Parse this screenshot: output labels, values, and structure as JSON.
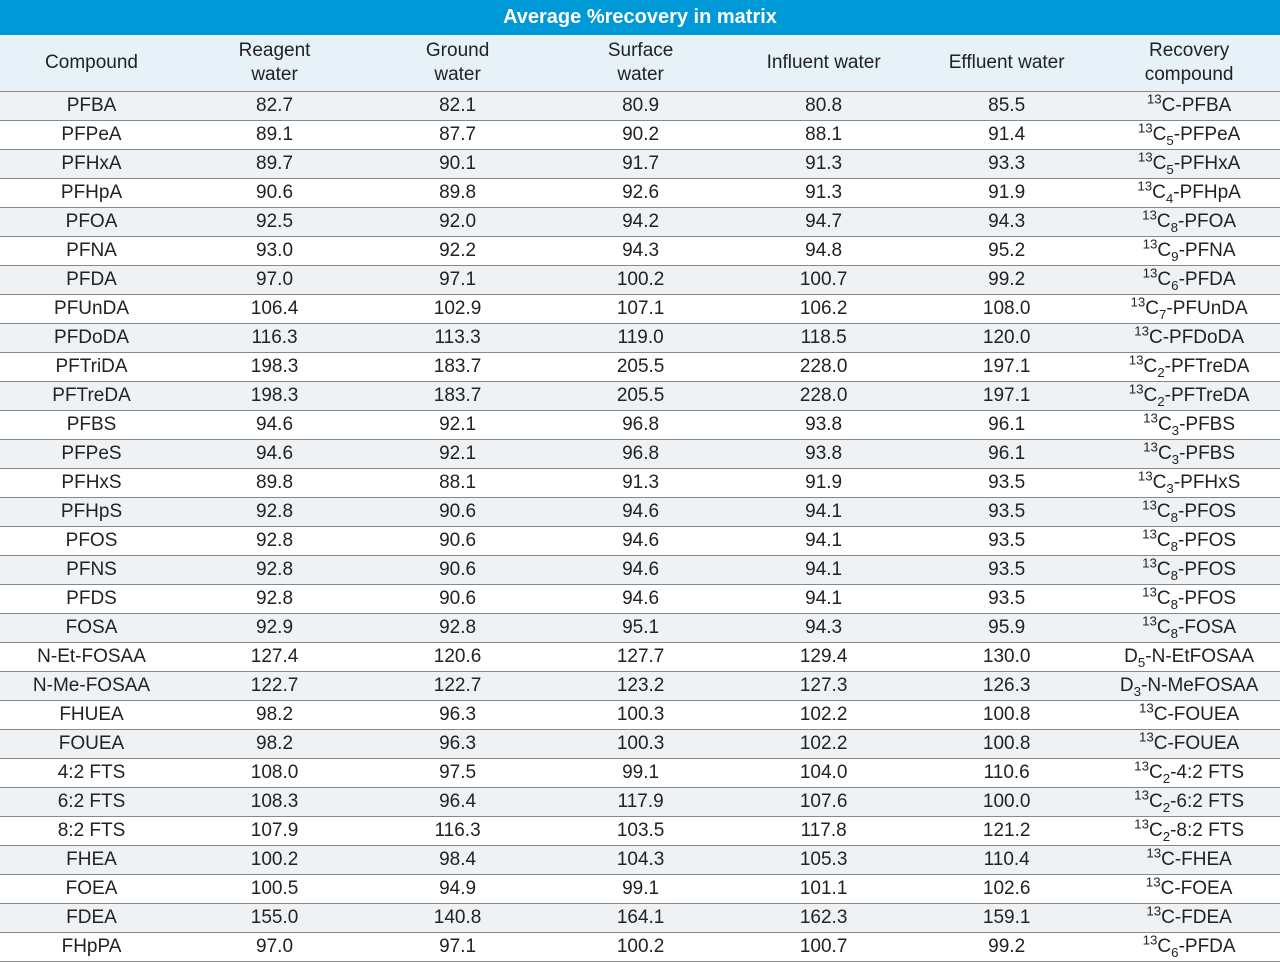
{
  "table": {
    "title": "Average %recovery in matrix",
    "title_bg": "#0099d8",
    "title_color": "#ffffff",
    "title_fontsize": 20,
    "header_bg": "#e6f2f8",
    "header_color": "#222222",
    "header_fontsize": 19,
    "body_fontsize": 19,
    "row_stripe_odd": "#eef2f5",
    "row_stripe_even": "#ffffff",
    "border_color": "#888888",
    "columns": [
      {
        "key": "compound",
        "label_html": "Compound"
      },
      {
        "key": "reagent",
        "label_html": "Reagent<br>water"
      },
      {
        "key": "ground",
        "label_html": "Ground<br>water"
      },
      {
        "key": "surface",
        "label_html": "Surface<br>water"
      },
      {
        "key": "influent",
        "label_html": "Influent water"
      },
      {
        "key": "effluent",
        "label_html": "Effluent water"
      },
      {
        "key": "recovery",
        "label_html": "Recovery<br>compound"
      }
    ],
    "col_widths_pct": [
      14.3,
      14.3,
      14.3,
      14.3,
      14.3,
      14.3,
      14.2
    ],
    "rows": [
      {
        "compound": "PFBA",
        "reagent": "82.7",
        "ground": "82.1",
        "surface": "80.9",
        "influent": "80.8",
        "effluent": "85.5",
        "recovery_html": "<sup>13</sup>C-PFBA"
      },
      {
        "compound": "PFPeA",
        "reagent": "89.1",
        "ground": "87.7",
        "surface": "90.2",
        "influent": "88.1",
        "effluent": "91.4",
        "recovery_html": "<sup>13</sup>C<sub>5</sub>-PFPeA"
      },
      {
        "compound": "PFHxA",
        "reagent": "89.7",
        "ground": "90.1",
        "surface": "91.7",
        "influent": "91.3",
        "effluent": "93.3",
        "recovery_html": "<sup>13</sup>C<sub>5</sub>-PFHxA"
      },
      {
        "compound": "PFHpA",
        "reagent": "90.6",
        "ground": "89.8",
        "surface": "92.6",
        "influent": "91.3",
        "effluent": "91.9",
        "recovery_html": "<sup>13</sup>C<sub>4</sub>-PFHpA"
      },
      {
        "compound": "PFOA",
        "reagent": "92.5",
        "ground": "92.0",
        "surface": "94.2",
        "influent": "94.7",
        "effluent": "94.3",
        "recovery_html": "<sup>13</sup>C<sub>8</sub>-PFOA"
      },
      {
        "compound": "PFNA",
        "reagent": "93.0",
        "ground": "92.2",
        "surface": "94.3",
        "influent": "94.8",
        "effluent": "95.2",
        "recovery_html": "<sup>13</sup>C<sub>9</sub>-PFNA"
      },
      {
        "compound": "PFDA",
        "reagent": "97.0",
        "ground": "97.1",
        "surface": "100.2",
        "influent": "100.7",
        "effluent": "99.2",
        "recovery_html": "<sup>13</sup>C<sub>6</sub>-PFDA"
      },
      {
        "compound": "PFUnDA",
        "reagent": "106.4",
        "ground": "102.9",
        "surface": "107.1",
        "influent": "106.2",
        "effluent": "108.0",
        "recovery_html": "<sup>13</sup>C<sub>7</sub>-PFUnDA"
      },
      {
        "compound": "PFDoDA",
        "reagent": "116.3",
        "ground": "113.3",
        "surface": "119.0",
        "influent": "118.5",
        "effluent": "120.0",
        "recovery_html": "<sup>13</sup>C-PFDoDA"
      },
      {
        "compound": "PFTriDA",
        "reagent": "198.3",
        "ground": "183.7",
        "surface": "205.5",
        "influent": "228.0",
        "effluent": "197.1",
        "recovery_html": "<sup>13</sup>C<sub>2</sub>-PFTreDA"
      },
      {
        "compound": "PFTreDA",
        "reagent": "198.3",
        "ground": "183.7",
        "surface": "205.5",
        "influent": "228.0",
        "effluent": "197.1",
        "recovery_html": "<sup>13</sup>C<sub>2</sub>-PFTreDA"
      },
      {
        "compound": "PFBS",
        "reagent": "94.6",
        "ground": "92.1",
        "surface": "96.8",
        "influent": "93.8",
        "effluent": "96.1",
        "recovery_html": "<sup>13</sup>C<sub>3</sub>-PFBS"
      },
      {
        "compound": "PFPeS",
        "reagent": "94.6",
        "ground": "92.1",
        "surface": "96.8",
        "influent": "93.8",
        "effluent": "96.1",
        "recovery_html": "<sup>13</sup>C<sub>3</sub>-PFBS"
      },
      {
        "compound": "PFHxS",
        "reagent": "89.8",
        "ground": "88.1",
        "surface": "91.3",
        "influent": "91.9",
        "effluent": "93.5",
        "recovery_html": "<sup>13</sup>C<sub>3</sub>-PFHxS"
      },
      {
        "compound": "PFHpS",
        "reagent": "92.8",
        "ground": "90.6",
        "surface": "94.6",
        "influent": "94.1",
        "effluent": "93.5",
        "recovery_html": "<sup>13</sup>C<sub>8</sub>-PFOS"
      },
      {
        "compound": "PFOS",
        "reagent": "92.8",
        "ground": "90.6",
        "surface": "94.6",
        "influent": "94.1",
        "effluent": "93.5",
        "recovery_html": "<sup>13</sup>C<sub>8</sub>-PFOS"
      },
      {
        "compound": "PFNS",
        "reagent": "92.8",
        "ground": "90.6",
        "surface": "94.6",
        "influent": "94.1",
        "effluent": "93.5",
        "recovery_html": "<sup>13</sup>C<sub>8</sub>-PFOS"
      },
      {
        "compound": "PFDS",
        "reagent": "92.8",
        "ground": "90.6",
        "surface": "94.6",
        "influent": "94.1",
        "effluent": "93.5",
        "recovery_html": "<sup>13</sup>C<sub>8</sub>-PFOS"
      },
      {
        "compound": "FOSA",
        "reagent": "92.9",
        "ground": "92.8",
        "surface": "95.1",
        "influent": "94.3",
        "effluent": "95.9",
        "recovery_html": "<sup>13</sup>C<sub>8</sub>-FOSA"
      },
      {
        "compound": "N-Et-FOSAA",
        "reagent": "127.4",
        "ground": "120.6",
        "surface": "127.7",
        "influent": "129.4",
        "effluent": "130.0",
        "recovery_html": "D<sub>5</sub>-N-EtFOSAA"
      },
      {
        "compound": "N-Me-FOSAA",
        "reagent": "122.7",
        "ground": "122.7",
        "surface": "123.2",
        "influent": "127.3",
        "effluent": "126.3",
        "recovery_html": "D<sub>3</sub>-N-MeFOSAA"
      },
      {
        "compound": "FHUEA",
        "reagent": "98.2",
        "ground": "96.3",
        "surface": "100.3",
        "influent": "102.2",
        "effluent": "100.8",
        "recovery_html": "<sup>13</sup>C-FOUEA"
      },
      {
        "compound": "FOUEA",
        "reagent": "98.2",
        "ground": "96.3",
        "surface": "100.3",
        "influent": "102.2",
        "effluent": "100.8",
        "recovery_html": "<sup>13</sup>C-FOUEA"
      },
      {
        "compound": "4:2 FTS",
        "reagent": "108.0",
        "ground": "97.5",
        "surface": "99.1",
        "influent": "104.0",
        "effluent": "110.6",
        "recovery_html": "<sup>13</sup>C<sub>2</sub>-4:2 FTS"
      },
      {
        "compound": "6:2 FTS",
        "reagent": "108.3",
        "ground": "96.4",
        "surface": "117.9",
        "influent": "107.6",
        "effluent": "100.0",
        "recovery_html": "<sup>13</sup>C<sub>2</sub>-6:2 FTS"
      },
      {
        "compound": "8:2 FTS",
        "reagent": "107.9",
        "ground": "116.3",
        "surface": "103.5",
        "influent": "117.8",
        "effluent": "121.2",
        "recovery_html": "<sup>13</sup>C<sub>2</sub>-8:2 FTS"
      },
      {
        "compound": "FHEA",
        "reagent": "100.2",
        "ground": "98.4",
        "surface": "104.3",
        "influent": "105.3",
        "effluent": "110.4",
        "recovery_html": "<sup>13</sup>C-FHEA"
      },
      {
        "compound": "FOEA",
        "reagent": "100.5",
        "ground": "94.9",
        "surface": "99.1",
        "influent": "101.1",
        "effluent": "102.6",
        "recovery_html": "<sup>13</sup>C-FOEA"
      },
      {
        "compound": "FDEA",
        "reagent": "155.0",
        "ground": "140.8",
        "surface": "164.1",
        "influent": "162.3",
        "effluent": "159.1",
        "recovery_html": "<sup>13</sup>C-FDEA"
      },
      {
        "compound": "FHpPA",
        "reagent": "97.0",
        "ground": "97.1",
        "surface": "100.2",
        "influent": "100.7",
        "effluent": "99.2",
        "recovery_html": "<sup>13</sup>C<sub>6</sub>-PFDA"
      }
    ]
  }
}
